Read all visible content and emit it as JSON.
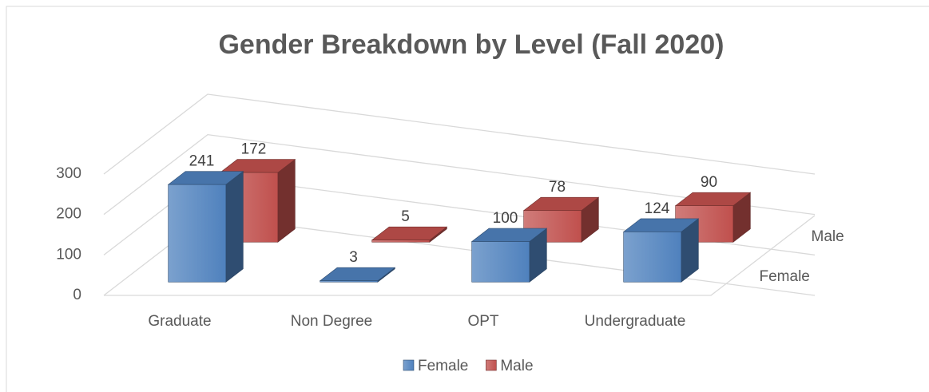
{
  "chart_data": {
    "type": "bar3d",
    "title": "Gender Breakdown by Level (Fall 2020)",
    "categories": [
      "Graduate",
      "Non Degree",
      "OPT",
      "Undergraduate"
    ],
    "series": [
      {
        "name": "Female",
        "color": "#4f81bd",
        "values": [
          241,
          3,
          100,
          124
        ]
      },
      {
        "name": "Male",
        "color": "#c0504d",
        "values": [
          172,
          5,
          78,
          90
        ]
      }
    ],
    "ylim": [
      0,
      300
    ],
    "yticks": [
      0,
      100,
      200,
      300
    ],
    "grid": true,
    "legend": "bottom"
  }
}
